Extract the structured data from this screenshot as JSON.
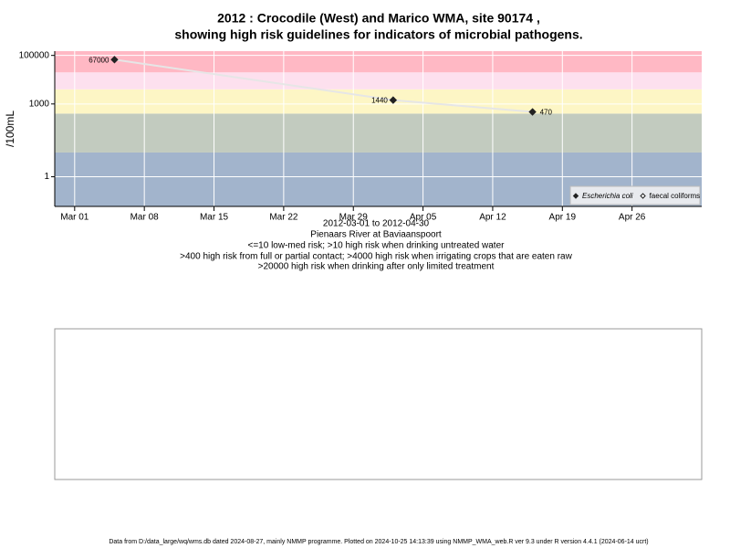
{
  "chart_data": {
    "type": "line",
    "title": "2012 : Crocodile (West) and Marico WMA, site 90174 ,",
    "subtitle": "showing high risk guidelines for indicators of microbial pathogens.",
    "y_label": "/100mL",
    "x_caption": "2012-03-01 to 2012-04-30",
    "site": "Pienaars River at Baviaanspoort",
    "notes": [
      "<=10 low-med risk; >10 high risk when drinking untreated water",
      ">400 high risk from full or partial contact; >4000 high risk when irrigating crops that are eaten raw",
      ">20000 high risk when drinking after only limited treatment"
    ],
    "x": [
      "2012-03-05",
      "2012-04-02",
      "2012-04-16"
    ],
    "series": [
      {
        "name": "Escherichia coli",
        "color": "#222222",
        "values": [
          67000,
          1440,
          470
        ]
      },
      {
        "name": "faecal coliforms",
        "color": "#222222",
        "values": [
          null,
          null,
          null
        ]
      }
    ],
    "line_color": "#e6e6e6",
    "xlim": [
      "2012-02-28",
      "2012-05-03"
    ],
    "xticks": [
      {
        "value": "2012-03-01",
        "label": "Mar 01"
      },
      {
        "value": "2012-03-08",
        "label": "Mar 08"
      },
      {
        "value": "2012-03-15",
        "label": "Mar 15"
      },
      {
        "value": "2012-03-22",
        "label": "Mar 22"
      },
      {
        "value": "2012-03-29",
        "label": "Mar 29"
      },
      {
        "value": "2012-04-05",
        "label": "Apr 05"
      },
      {
        "value": "2012-04-12",
        "label": "Apr 12"
      },
      {
        "value": "2012-04-19",
        "label": "Apr 19"
      },
      {
        "value": "2012-04-26",
        "label": "Apr 26"
      }
    ],
    "ylim": [
      0.06,
      150000
    ],
    "yticks": [
      1,
      1000,
      100000
    ],
    "log_y": true,
    "grid": true,
    "band_edges": [
      10,
      400,
      4000,
      20000
    ],
    "band_colors": [
      "#a2b4cc",
      "#c2cbbf",
      "#fdf6c5",
      "#fde0ee",
      "#ffb8c4"
    ],
    "legend": "lower right",
    "footer": "Data from D:/data_large/wq/wms.db dated 2024-08-27, mainly NMMP programme. Plotted on 2024-10-25 14:13:39 using NMMP_WMA_web.R ver 9.3 under R version 4.4.1 (2024-06-14 ucrt)"
  }
}
